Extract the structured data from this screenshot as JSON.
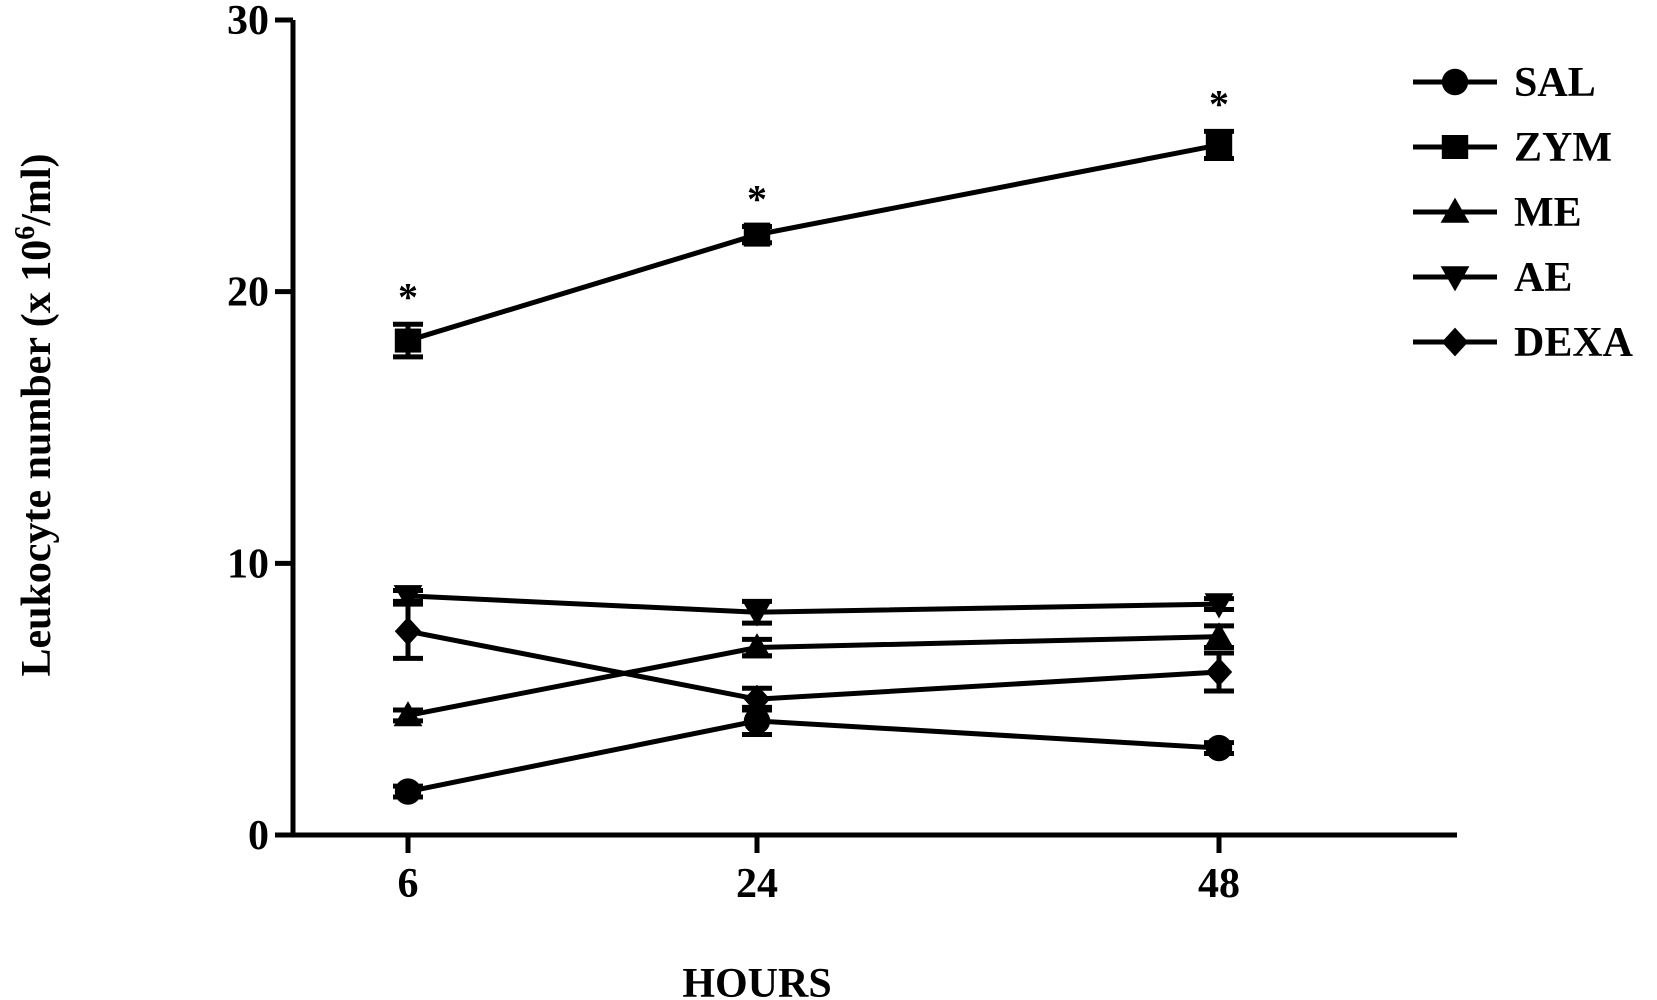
{
  "chart_data": {
    "type": "line",
    "title": "",
    "xlabel": "HOURS",
    "ylabel_main": "Leukocyte number (x 10",
    "ylabel_sup": "6",
    "ylabel_tail": "/ml)",
    "x": [
      6,
      24,
      48
    ],
    "x_tick_labels": [
      "6",
      "24",
      "48"
    ],
    "ylim": [
      0,
      30
    ],
    "y_ticks": [
      0,
      10,
      20,
      30
    ],
    "y_tick_labels": [
      "0",
      "10",
      "20",
      "30"
    ],
    "grid": false,
    "legend_position": "top-right",
    "series": [
      {
        "name": "SAL",
        "marker": "circle",
        "values": [
          1.6,
          4.2,
          3.2
        ],
        "errors": [
          0.2,
          0.5,
          0.2
        ]
      },
      {
        "name": "ZYM",
        "marker": "square",
        "values": [
          18.2,
          22.1,
          25.4
        ],
        "errors": [
          0.6,
          0.3,
          0.5
        ]
      },
      {
        "name": "ME",
        "marker": "triangle-up",
        "values": [
          4.4,
          6.9,
          7.3
        ],
        "errors": [
          0.2,
          0.3,
          0.4
        ]
      },
      {
        "name": "AE",
        "marker": "triangle-down",
        "values": [
          8.8,
          8.2,
          8.5
        ],
        "errors": [
          0.2,
          0.4,
          0.2
        ]
      },
      {
        "name": "DEXA",
        "marker": "diamond",
        "values": [
          7.5,
          5.0,
          6.0
        ],
        "errors": [
          1.0,
          0.4,
          0.7
        ]
      }
    ],
    "annotations": [
      {
        "series": "ZYM",
        "x": 6,
        "text": "*"
      },
      {
        "series": "ZYM",
        "x": 24,
        "text": "*"
      },
      {
        "series": "ZYM",
        "x": 48,
        "text": "*"
      }
    ],
    "line_color": "#000000"
  }
}
